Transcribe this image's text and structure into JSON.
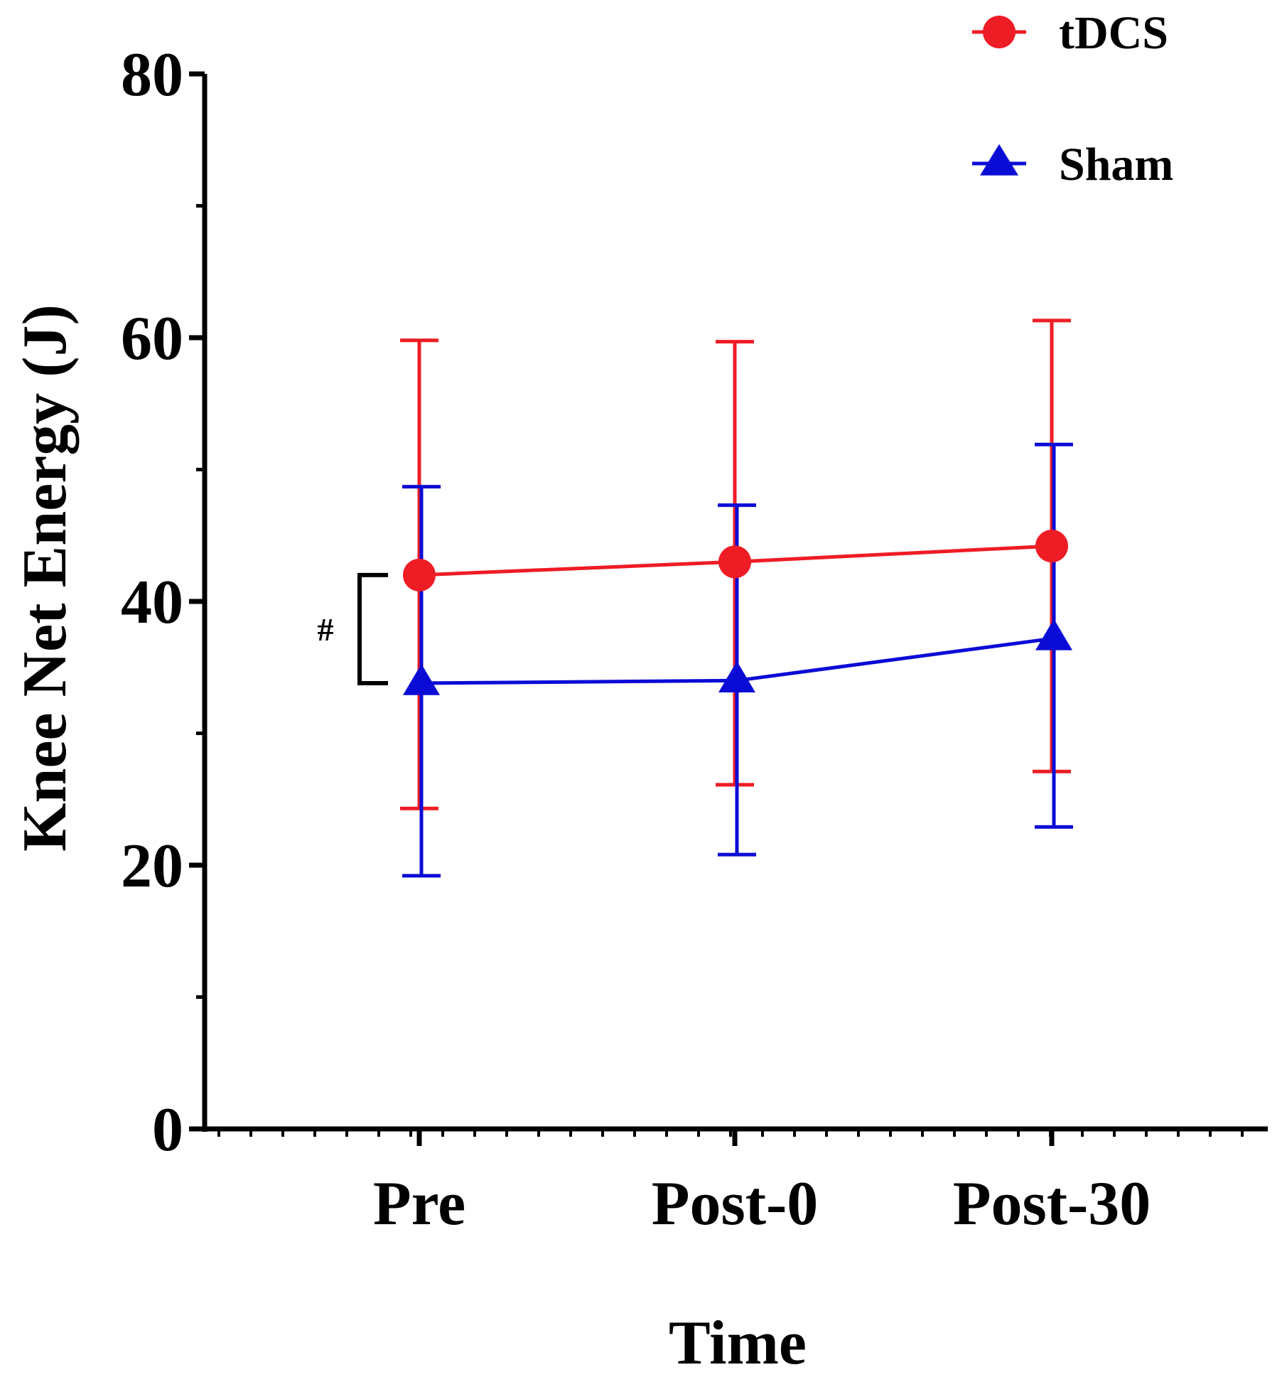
{
  "chart_data": {
    "type": "line",
    "title": "",
    "xlabel": "Time",
    "ylabel": "Knee Net Energy (J)",
    "categories": [
      "Pre",
      "Post-0",
      "Post-30"
    ],
    "ylim": [
      0,
      80
    ],
    "yticks": [
      0,
      20,
      40,
      60,
      80
    ],
    "ytick_labels": [
      "0",
      "20",
      "40",
      "60",
      "80"
    ],
    "grid": false,
    "legend_position": "top-right",
    "series": [
      {
        "name": "tDCS",
        "color": "#ee1c24",
        "marker": "circle",
        "values": [
          42.0,
          43.0,
          44.2
        ],
        "err_upper": [
          59.8,
          59.7,
          61.3
        ],
        "err_lower": [
          24.3,
          26.1,
          27.1
        ]
      },
      {
        "name": "Sham",
        "color": "#0b0bd6",
        "marker": "triangle",
        "values": [
          33.8,
          34.0,
          37.2
        ],
        "err_upper": [
          48.7,
          47.3,
          51.9
        ],
        "err_lower": [
          19.2,
          20.8,
          22.9
        ]
      }
    ],
    "annotation": {
      "text": "#",
      "category": "Pre",
      "between": [
        42.0,
        33.8
      ]
    }
  }
}
